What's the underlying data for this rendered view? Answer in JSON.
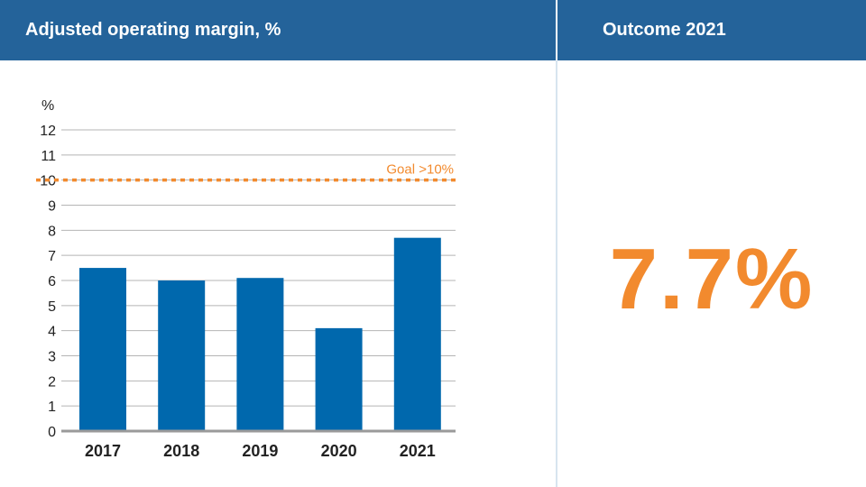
{
  "header": {
    "title": "Adjusted operating margin, %",
    "outcome_title": "Outcome 2021"
  },
  "outcome": {
    "value": "7.7%"
  },
  "colors": {
    "header_bg": "#24639a",
    "bar": "#0068ad",
    "goal": "#f28a2e",
    "grid": "#b5b5b5",
    "axis": "#9a9a9a",
    "outcome": "#f28a2e"
  },
  "chart_data": {
    "type": "bar",
    "title": "Adjusted operating margin, %",
    "xlabel": "",
    "ylabel": "%",
    "categories": [
      "2017",
      "2018",
      "2019",
      "2020",
      "2021"
    ],
    "values": [
      6.5,
      6.0,
      6.1,
      4.1,
      7.7
    ],
    "ylim": [
      0,
      12
    ],
    "yticks": [
      0,
      1,
      2,
      3,
      4,
      5,
      6,
      7,
      8,
      9,
      10,
      11,
      12
    ],
    "grid": true,
    "reference_line": {
      "value": 10,
      "label": "Goal >10%",
      "style": "dotted"
    }
  }
}
